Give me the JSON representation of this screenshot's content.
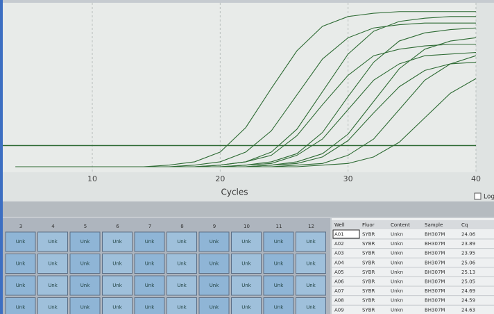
{
  "chart_data": {
    "type": "line",
    "x_label": "Cycles",
    "log_label": "Log",
    "x": [
      4,
      6,
      8,
      10,
      12,
      14,
      16,
      18,
      20,
      22,
      24,
      26,
      28,
      30,
      32,
      34,
      36,
      38,
      40
    ],
    "xlim": [
      3,
      40
    ],
    "xticks": [
      10,
      20,
      30,
      40
    ],
    "ylim": [
      0,
      100
    ],
    "threshold": 13,
    "threshold_color": "#2f6b35",
    "series": [
      {
        "color": "#2e6b34",
        "values": [
          0,
          0,
          0,
          0,
          0,
          0,
          1,
          3,
          9,
          24,
          48,
          71,
          86,
          92,
          94,
          95,
          95,
          95,
          95
        ]
      },
      {
        "color": "#2e6b34",
        "values": [
          0,
          0,
          0,
          0,
          0,
          0,
          0,
          1,
          3,
          9,
          22,
          44,
          66,
          79,
          85,
          87,
          88,
          88,
          88
        ]
      },
      {
        "color": "#2e6b34",
        "values": [
          0,
          0,
          0,
          0,
          0,
          0,
          0,
          0,
          1,
          3,
          9,
          23,
          46,
          69,
          83,
          89,
          91,
          92,
          92
        ]
      },
      {
        "color": "#2e6b34",
        "values": [
          0,
          0,
          0,
          0,
          0,
          0,
          0,
          0,
          1,
          3,
          7,
          19,
          38,
          56,
          68,
          72,
          74,
          75,
          75
        ]
      },
      {
        "color": "#2e6b34",
        "values": [
          0,
          0,
          0,
          0,
          0,
          0,
          0,
          0,
          0,
          1,
          3,
          8,
          21,
          43,
          64,
          77,
          82,
          84,
          85
        ]
      },
      {
        "color": "#2e6b34",
        "values": [
          0,
          0,
          0,
          0,
          0,
          0,
          0,
          0,
          0,
          1,
          2,
          7,
          17,
          35,
          53,
          63,
          68,
          69,
          70
        ]
      },
      {
        "color": "#2e6b34",
        "values": [
          0,
          0,
          0,
          0,
          0,
          0,
          0,
          0,
          0,
          0,
          1,
          3,
          8,
          20,
          40,
          60,
          72,
          77,
          79
        ]
      },
      {
        "color": "#2e6b34",
        "values": [
          0,
          0,
          0,
          0,
          0,
          0,
          0,
          0,
          0,
          0,
          1,
          2,
          6,
          16,
          33,
          49,
          59,
          63,
          64
        ]
      },
      {
        "color": "#2e6b34",
        "values": [
          0,
          0,
          0,
          0,
          0,
          0,
          0,
          0,
          0,
          0,
          0,
          1,
          2,
          7,
          17,
          35,
          53,
          63,
          68
        ]
      },
      {
        "color": "#2e6b34",
        "values": [
          0,
          0,
          0,
          0,
          0,
          0,
          0,
          0,
          0,
          0,
          0,
          0,
          1,
          2,
          6,
          15,
          30,
          45,
          54
        ]
      }
    ]
  },
  "plate": {
    "columns": [
      "3",
      "4",
      "5",
      "6",
      "7",
      "8",
      "9",
      "10",
      "11",
      "12"
    ],
    "rows": [
      [
        "Unk",
        "Unk",
        "Unk",
        "Unk",
        "Unk",
        "Unk",
        "Unk",
        "Unk",
        "Unk",
        "Unk"
      ],
      [
        "Unk",
        "Unk",
        "Unk",
        "Unk",
        "Unk",
        "Unk",
        "Unk",
        "Unk",
        "Unk",
        "Unk"
      ],
      [
        "Unk",
        "Unk",
        "Unk",
        "Unk",
        "Unk",
        "Unk",
        "Unk",
        "Unk",
        "Unk",
        "Unk"
      ],
      [
        "Unk",
        "Unk",
        "Unk",
        "Unk",
        "Unk",
        "Unk",
        "Unk",
        "Unk",
        "Unk",
        "Unk"
      ]
    ]
  },
  "table": {
    "headers": [
      "Well",
      "Fluor",
      "Content",
      "Sample",
      "Cq"
    ],
    "rows": [
      [
        "A01",
        "SYBR",
        "Unkn",
        "BH307M",
        24.06
      ],
      [
        "A02",
        "SYBR",
        "Unkn",
        "BH307M",
        23.89
      ],
      [
        "A03",
        "SYBR",
        "Unkn",
        "BH307M",
        23.95
      ],
      [
        "A04",
        "SYBR",
        "Unkn",
        "BH307M",
        25.06
      ],
      [
        "A05",
        "SYBR",
        "Unkn",
        "BH307M",
        25.13
      ],
      [
        "A06",
        "SYBR",
        "Unkn",
        "BH307M",
        25.05
      ],
      [
        "A07",
        "SYBR",
        "Unkn",
        "BH307M",
        24.69
      ],
      [
        "A08",
        "SYBR",
        "Unkn",
        "BH307M",
        24.59
      ],
      [
        "A09",
        "SYBR",
        "Unkn",
        "BH307M",
        24.63
      ]
    ]
  }
}
